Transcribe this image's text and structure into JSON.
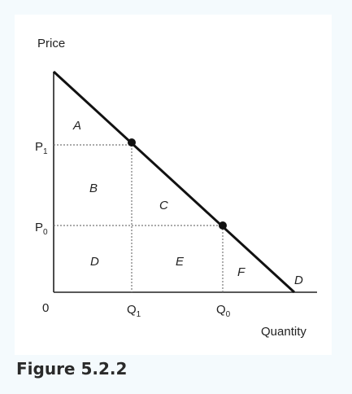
{
  "diagram": {
    "y_axis_label": "Price",
    "x_axis_label": "Quantity",
    "origin_label": "0",
    "price_labels": {
      "p1": "P",
      "p1_sub": "1",
      "p0": "P",
      "p0_sub": "0"
    },
    "quantity_labels": {
      "q1": "Q",
      "q1_sub": "1",
      "q0": "Q",
      "q0_sub": "0"
    },
    "regions": {
      "a": "A",
      "b": "B",
      "c": "C",
      "d": "D",
      "e": "E",
      "f": "F"
    },
    "demand_curve_label": "D",
    "colors": {
      "line": "#111111",
      "panel": "#ffffff",
      "background": "#f4fafd"
    }
  },
  "caption": "Figure 5.2.2"
}
